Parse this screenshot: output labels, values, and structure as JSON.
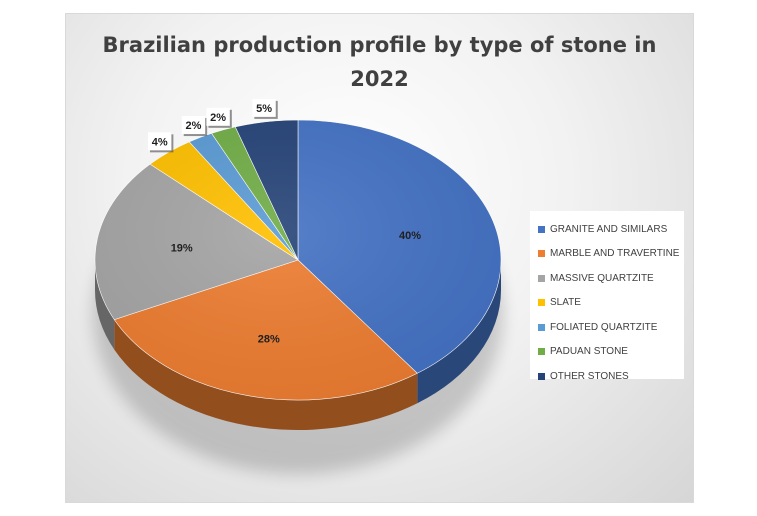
{
  "chart_data": {
    "type": "pie",
    "title": "Brazilian production profile by type of stone in\n2022",
    "categories": [
      "GRANITE AND SIMILARS",
      "MARBLE AND TRAVERTINE",
      "MASSIVE QUARTZITE",
      "SLATE",
      "FOLIATED QUARTZITE",
      "PADUAN STONE",
      "OTHER STONES"
    ],
    "values": [
      40,
      28,
      19,
      4,
      2,
      2,
      5
    ],
    "labels": [
      "40%",
      "28%",
      "19%",
      "4%",
      "2%",
      "2%",
      "5%"
    ],
    "colors": [
      "#4472C4",
      "#ED7D31",
      "#A5A5A5",
      "#FFC000",
      "#5B9BD5",
      "#70AD47",
      "#264478"
    ],
    "legend_position": "right",
    "style": "3d-pie"
  }
}
